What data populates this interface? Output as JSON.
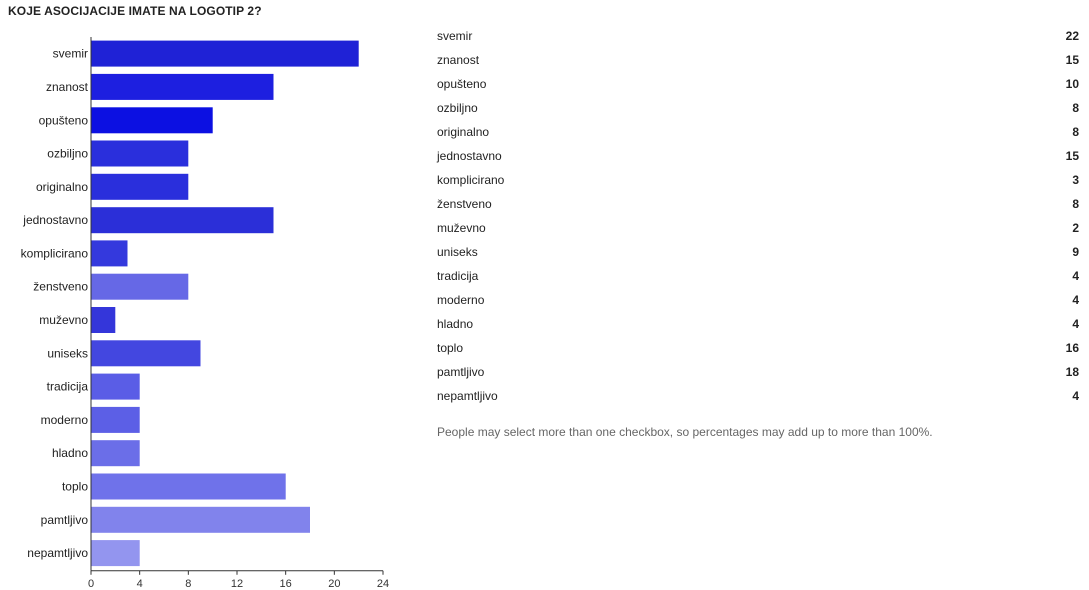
{
  "title": "KOJE ASOCIJACIJE IMATE NA LOGOTIP 2?",
  "note": "People may select more than one checkbox, so percentages may add up to more than 100%.",
  "chart_data": {
    "type": "bar",
    "orientation": "horizontal",
    "title": "KOJE ASOCIJACIJE IMATE NA LOGOTIP 2?",
    "xlabel": "",
    "ylabel": "",
    "xlim": [
      0,
      24
    ],
    "ticks": [
      0,
      4,
      8,
      12,
      16,
      20,
      24
    ],
    "grid": false,
    "categories": [
      "svemir",
      "znanost",
      "opušteno",
      "ozbiljno",
      "originalno",
      "jednostavno",
      "komplicirano",
      "ženstveno",
      "muževno",
      "uniseks",
      "tradicija",
      "moderno",
      "hladno",
      "toplo",
      "pamtljivo",
      "nepamtljivo"
    ],
    "values": [
      22,
      15,
      10,
      8,
      8,
      15,
      3,
      8,
      2,
      9,
      4,
      4,
      4,
      16,
      18,
      4
    ],
    "colors": [
      "#1f22d6",
      "#1d1fe0",
      "#0c10e2",
      "#2a2fdc",
      "#2a2fdc",
      "#2b2fd8",
      "#3439dd",
      "#6668e6",
      "#3436da",
      "#4347e0",
      "#5a5de6",
      "#5c5fe6",
      "#6b6ee8",
      "#6f72ea",
      "#8183ec",
      "#9395ef"
    ]
  }
}
